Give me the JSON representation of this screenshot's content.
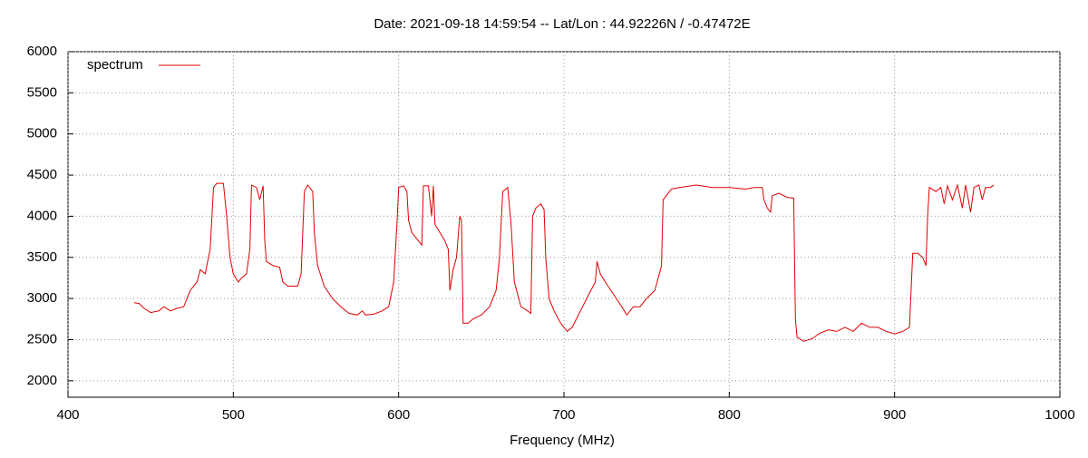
{
  "chart_data": {
    "type": "line",
    "title": "Date: 2021-09-18 14:59:54  --  Lat/Lon : 44.92226N / -0.47472E",
    "x_label": "Frequency (MHz)",
    "xlim": [
      400,
      1000
    ],
    "xticks": [
      400,
      500,
      600,
      700,
      800,
      900,
      1000
    ],
    "ylim": [
      1800,
      6000
    ],
    "yticks": [
      2000,
      2500,
      3000,
      3500,
      4000,
      4500,
      5000,
      5500,
      6000
    ],
    "grid": true,
    "legend": "upper left",
    "x": [
      440,
      443,
      446,
      450,
      455,
      458,
      462,
      466,
      470,
      474,
      478,
      480,
      483,
      486,
      488,
      490,
      494,
      496,
      498,
      500,
      503,
      505,
      508,
      510,
      511,
      514,
      516,
      518,
      519,
      520,
      524,
      528,
      530,
      533,
      536,
      539,
      541,
      543,
      545,
      548,
      549,
      551,
      555,
      560,
      565,
      570,
      575,
      578,
      580,
      585,
      590,
      594,
      597,
      599,
      600,
      603,
      605,
      606,
      608,
      612,
      614,
      615,
      618,
      620,
      621,
      622,
      625,
      628,
      630,
      631,
      633,
      635,
      637,
      638,
      639,
      642,
      645,
      650,
      655,
      659,
      661,
      663,
      666,
      668,
      670,
      674,
      678,
      680,
      681,
      683,
      686,
      688,
      689,
      691,
      694,
      698,
      702,
      705,
      710,
      715,
      719,
      720,
      722,
      725,
      730,
      735,
      738,
      742,
      746,
      750,
      755,
      759,
      760,
      765,
      770,
      780,
      790,
      800,
      810,
      815,
      820,
      821,
      823,
      825,
      826,
      830,
      835,
      839,
      840,
      841,
      845,
      850,
      855,
      860,
      865,
      870,
      875,
      880,
      885,
      890,
      895,
      900,
      905,
      909,
      911,
      914,
      917,
      919,
      920,
      921,
      925,
      928,
      930,
      932,
      935,
      938,
      941,
      943,
      946,
      948,
      951,
      953,
      955,
      958,
      960
    ],
    "series": [
      {
        "name": "spectrum",
        "color": "#e00000",
        "values": [
          2950,
          2940,
          2880,
          2830,
          2850,
          2900,
          2850,
          2880,
          2900,
          3100,
          3200,
          3350,
          3300,
          3600,
          4350,
          4400,
          4400,
          4000,
          3500,
          3300,
          3200,
          3250,
          3300,
          3600,
          4380,
          4350,
          4200,
          4370,
          3700,
          3450,
          3400,
          3380,
          3200,
          3150,
          3150,
          3150,
          3300,
          4300,
          4380,
          4300,
          3800,
          3400,
          3150,
          3000,
          2900,
          2820,
          2800,
          2850,
          2800,
          2810,
          2850,
          2900,
          3200,
          3900,
          4350,
          4370,
          4300,
          3950,
          3800,
          3700,
          3650,
          4370,
          4370,
          4000,
          4370,
          3900,
          3800,
          3700,
          3600,
          3100,
          3350,
          3500,
          4000,
          3950,
          2700,
          2700,
          2750,
          2800,
          2900,
          3100,
          3500,
          4300,
          4350,
          3900,
          3200,
          2900,
          2850,
          2820,
          4000,
          4100,
          4150,
          4080,
          3500,
          3000,
          2850,
          2700,
          2600,
          2650,
          2850,
          3050,
          3200,
          3450,
          3300,
          3200,
          3050,
          2900,
          2800,
          2900,
          2900,
          3000,
          3100,
          3400,
          4200,
          4330,
          4350,
          4380,
          4350,
          4350,
          4330,
          4350,
          4350,
          4200,
          4100,
          4050,
          4250,
          4280,
          4230,
          4220,
          2750,
          2530,
          2480,
          2510,
          2580,
          2620,
          2600,
          2650,
          2600,
          2700,
          2650,
          2650,
          2600,
          2570,
          2600,
          2650,
          3550,
          3550,
          3500,
          3400,
          4000,
          4350,
          4300,
          4350,
          4150,
          4370,
          4200,
          4380,
          4100,
          4380,
          4050,
          4350,
          4380,
          4200,
          4350,
          4350,
          4380
        ]
      }
    ]
  }
}
